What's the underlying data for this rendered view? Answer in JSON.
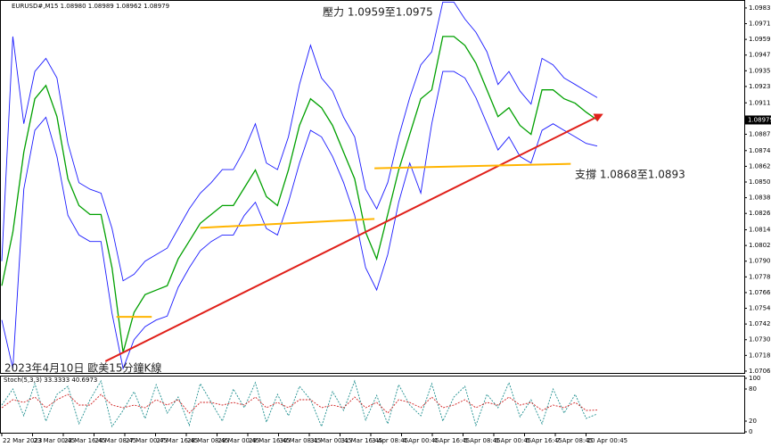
{
  "chart_data": [
    {
      "type": "line",
      "title": "EURUSD#,M15  1.08980 1.08989 1.08962 1.08979",
      "ylim": [
        1.07046,
        1.09889
      ],
      "yticks": [
        1.09835,
        1.09715,
        1.09595,
        1.09475,
        1.09355,
        1.09235,
        {
          "value": 1.0911,
          "label": "1.09110"
        },
        {
          "value": 1.0887,
          "label": "1.08870"
        },
        1.08745,
        1.08625,
        1.08505,
        1.08385,
        1.08265,
        {
          "value": 1.0814,
          "label": "1.08140"
        },
        {
          "value": 1.0802,
          "label": "1.08020"
        },
        {
          "value": 1.079,
          "label": "1.07900"
        },
        {
          "value": 1.0778,
          "label": "1.07780"
        },
        {
          "value": 1.0766,
          "label": "1.07660"
        },
        {
          "value": 1.0754,
          "label": "1.07540"
        },
        {
          "value": 1.0742,
          "label": "1.07420"
        },
        {
          "value": 1.073,
          "label": "1.07300"
        },
        {
          "value": 1.0718,
          "label": "1.07180"
        },
        {
          "value": 1.0706,
          "label": "1.07060"
        }
      ],
      "current_price": 1.08979,
      "series": [
        {
          "color": "#00a000",
          "values": [
            1.07713,
            1.08121,
            1.08733,
            1.09141,
            1.09243,
            1.09005,
            1.08529,
            1.08325,
            1.08257,
            1.08257,
            1.07849,
            1.07203,
            1.07509,
            1.07645,
            1.07679,
            1.07713,
            1.07917,
            1.08053,
            1.08189,
            1.08257,
            1.08325,
            1.08325,
            1.08461,
            1.08597,
            1.08393,
            1.08325,
            1.08597,
            1.08937,
            1.09141,
            1.09073,
            1.08937,
            1.08733,
            1.08529,
            1.08121,
            1.07917,
            1.08257,
            1.08597,
            1.08869,
            1.09141,
            1.09209,
            1.09617,
            1.09617,
            1.09549,
            1.09413,
            1.09209,
            1.09005,
            1.09073,
            1.08937,
            1.08869,
            1.09209,
            1.09209,
            1.09141,
            1.09107,
            1.09039,
            1.08979
          ]
        },
        {
          "color": "#1a1aff",
          "values": [
            1.079,
            1.09617,
            1.0895,
            1.0935,
            1.0945,
            1.093,
            1.088,
            1.085,
            1.0845,
            1.0842,
            1.0815,
            1.0775,
            1.078,
            1.079,
            1.0795,
            1.08,
            1.0815,
            1.083,
            1.0842,
            1.085,
            1.086,
            1.086,
            1.0875,
            1.0895,
            1.0865,
            1.086,
            1.0885,
            1.0925,
            1.0955,
            1.093,
            1.092,
            1.09,
            1.0885,
            1.0845,
            1.083,
            1.085,
            1.0885,
            1.0915,
            1.094,
            1.095,
            1.0988,
            1.0988,
            1.0975,
            1.0965,
            1.095,
            1.0925,
            1.0935,
            1.092,
            1.091,
            1.0945,
            1.094,
            1.093,
            1.0925,
            1.092,
            1.0915
          ]
        },
        {
          "color": "#1a1aff",
          "values": [
            1.0745,
            1.0708,
            1.0845,
            1.089,
            1.09,
            1.087,
            1.0825,
            1.081,
            1.0805,
            1.0805,
            1.075,
            1.0708,
            1.073,
            1.074,
            1.0745,
            1.0748,
            1.077,
            1.0785,
            1.0798,
            1.0805,
            1.081,
            1.081,
            1.0825,
            1.0835,
            1.0815,
            1.081,
            1.0835,
            1.0865,
            1.089,
            1.0885,
            1.087,
            1.085,
            1.0825,
            1.0785,
            1.0768,
            1.0795,
            1.0835,
            1.0865,
            1.0842,
            1.0895,
            1.0935,
            1.0935,
            1.093,
            1.0915,
            1.0895,
            1.0875,
            1.0885,
            1.087,
            1.0865,
            1.089,
            1.0895,
            1.089,
            1.0885,
            1.088,
            1.0878
          ]
        }
      ],
      "lines": [
        {
          "color": "#e0201a",
          "x": [
            9.4,
            54.4
          ],
          "y": [
            1.07135,
            1.0902
          ]
        },
        {
          "color": "#ffb400",
          "x": [
            10.4,
            13.6
          ],
          "y": [
            1.07475,
            1.07475
          ]
        },
        {
          "color": "#ffb400",
          "x": [
            18.0,
            33.8
          ],
          "y": [
            1.08155,
            1.08223
          ]
        },
        {
          "color": "#ffb400",
          "x": [
            33.8,
            51.6
          ],
          "y": [
            1.0861,
            1.08644
          ]
        }
      ],
      "annotations": [
        "壓力 1.0959至1.0975",
        "支撐 1.0868至1.0893",
        "2023年4月10日 歐美15分鐘K線"
      ]
    },
    {
      "type": "line",
      "title": "Stoch(5,3,3) 33.3333 40.6973",
      "ylim": [
        0,
        100
      ],
      "yticks": [
        100,
        80,
        20,
        0
      ],
      "series": [
        {
          "color": "#1f8f8f",
          "values": [
            50,
            80,
            30,
            90,
            20,
            70,
            85,
            15,
            60,
            95,
            10,
            40,
            75,
            25,
            88,
            35,
            65,
            12,
            90,
            55,
            20,
            80,
            45,
            92,
            18,
            70,
            30,
            85,
            60,
            10,
            75,
            40,
            95,
            22,
            68,
            15,
            88,
            50,
            30,
            90,
            20,
            65,
            85,
            12,
            70,
            45,
            92,
            28,
            60,
            15,
            80,
            35,
            70,
            25,
            33.3333
          ]
        },
        {
          "color": "#d02020",
          "values": [
            45,
            60,
            55,
            65,
            45,
            60,
            70,
            50,
            50,
            70,
            50,
            45,
            50,
            45,
            60,
            50,
            60,
            35,
            55,
            55,
            50,
            55,
            50,
            65,
            45,
            55,
            45,
            60,
            60,
            45,
            50,
            45,
            65,
            45,
            55,
            35,
            60,
            55,
            45,
            65,
            45,
            50,
            60,
            45,
            55,
            50,
            65,
            50,
            55,
            40,
            50,
            45,
            55,
            40,
            40.6973
          ]
        }
      ],
      "x_labels": [
        "22 Mar 2023",
        "23 Mar 00:45",
        "23 Mar 16:45",
        "24 Mar 08:45",
        "27 Mar 00:45",
        "27 Mar 16:45",
        "28 Mar 08:45",
        "29 Mar 00:45",
        "29 Mar 16:45",
        "30 Mar 08:45",
        "31 Mar 00:45",
        "31 Mar 16:45",
        "3 Apr 08:45",
        "4 Apr 00:45",
        "4 Apr 16:45",
        "5 Apr 08:45",
        "6 Apr 00:45",
        "6 Apr 16:45",
        "7 Apr 08:45",
        "10 Apr 00:45"
      ]
    }
  ]
}
